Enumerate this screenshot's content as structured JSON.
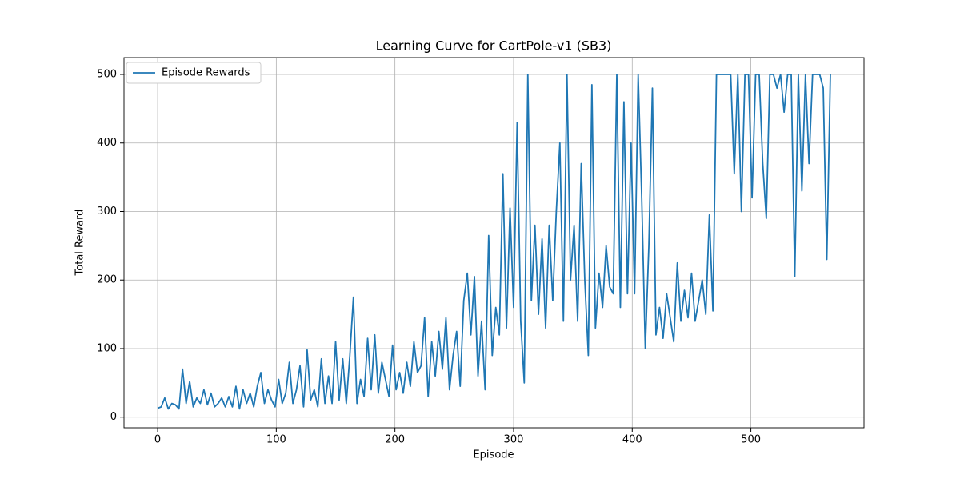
{
  "chart_data": {
    "type": "line",
    "title": "Learning Curve for CartPole-v1 (SB3)",
    "xlabel": "Episode",
    "ylabel": "Total Reward",
    "x": [
      0,
      3,
      6,
      9,
      12,
      15,
      18,
      21,
      24,
      27,
      30,
      33,
      36,
      39,
      42,
      45,
      48,
      51,
      54,
      57,
      60,
      63,
      66,
      69,
      72,
      75,
      78,
      81,
      84,
      87,
      90,
      93,
      96,
      99,
      102,
      105,
      108,
      111,
      114,
      117,
      120,
      123,
      126,
      129,
      132,
      135,
      138,
      141,
      144,
      147,
      150,
      153,
      156,
      159,
      162,
      165,
      168,
      171,
      174,
      177,
      180,
      183,
      186,
      189,
      192,
      195,
      198,
      201,
      204,
      207,
      210,
      213,
      216,
      219,
      222,
      225,
      228,
      231,
      234,
      237,
      240,
      243,
      246,
      249,
      252,
      255,
      258,
      261,
      264,
      267,
      270,
      273,
      276,
      279,
      282,
      285,
      288,
      291,
      294,
      297,
      300,
      303,
      306,
      309,
      312,
      315,
      318,
      321,
      324,
      327,
      330,
      333,
      336,
      339,
      342,
      345,
      348,
      351,
      354,
      357,
      360,
      363,
      366,
      369,
      372,
      375,
      378,
      381,
      384,
      387,
      390,
      393,
      396,
      399,
      402,
      405,
      408,
      411,
      414,
      417,
      420,
      423,
      426,
      429,
      432,
      435,
      438,
      441,
      444,
      447,
      450,
      453,
      456,
      459,
      462,
      465,
      468,
      471,
      474,
      477,
      480,
      483,
      486,
      489,
      492,
      495,
      498,
      501,
      504,
      507,
      510,
      513,
      516,
      519,
      522,
      525,
      528,
      531,
      534,
      537,
      540,
      543,
      546,
      549,
      552,
      555,
      558,
      561,
      564,
      567
    ],
    "series": [
      {
        "name": "Episode Rewards",
        "color": "#1f77b4",
        "values": [
          13,
          15,
          28,
          12,
          20,
          18,
          12,
          70,
          20,
          52,
          15,
          28,
          20,
          40,
          18,
          35,
          15,
          20,
          28,
          15,
          30,
          15,
          45,
          12,
          40,
          20,
          35,
          15,
          45,
          65,
          20,
          40,
          25,
          15,
          55,
          20,
          35,
          80,
          20,
          40,
          75,
          15,
          98,
          25,
          40,
          15,
          85,
          20,
          60,
          20,
          110,
          25,
          85,
          20,
          90,
          175,
          20,
          55,
          30,
          115,
          40,
          120,
          35,
          80,
          55,
          30,
          105,
          40,
          65,
          35,
          80,
          45,
          110,
          65,
          75,
          145,
          30,
          110,
          60,
          125,
          70,
          145,
          40,
          90,
          125,
          45,
          170,
          210,
          120,
          205,
          60,
          140,
          40,
          265,
          90,
          160,
          120,
          355,
          130,
          305,
          160,
          430,
          140,
          50,
          500,
          170,
          280,
          150,
          260,
          130,
          280,
          170,
          300,
          400,
          140,
          500,
          200,
          280,
          140,
          370,
          200,
          90,
          485,
          130,
          210,
          160,
          250,
          190,
          180,
          500,
          160,
          460,
          180,
          400,
          180,
          500,
          320,
          100,
          250,
          480,
          120,
          160,
          115,
          180,
          145,
          110,
          225,
          140,
          185,
          145,
          210,
          140,
          170,
          200,
          150,
          295,
          155,
          500,
          500,
          500,
          500,
          500,
          355,
          500,
          300,
          500,
          500,
          320,
          500,
          500,
          370,
          290,
          500,
          500,
          480,
          500,
          445,
          500,
          500,
          205,
          500,
          330,
          500,
          370,
          500,
          500,
          500,
          480,
          230,
          500
        ]
      }
    ],
    "xlim": [
      -28.35,
      595.35
    ],
    "ylim": [
      -15.5,
      524.5
    ],
    "xticks": [
      0,
      100,
      200,
      300,
      400,
      500
    ],
    "yticks": [
      0,
      100,
      200,
      300,
      400,
      500
    ],
    "grid": true,
    "legend": "upper left"
  }
}
